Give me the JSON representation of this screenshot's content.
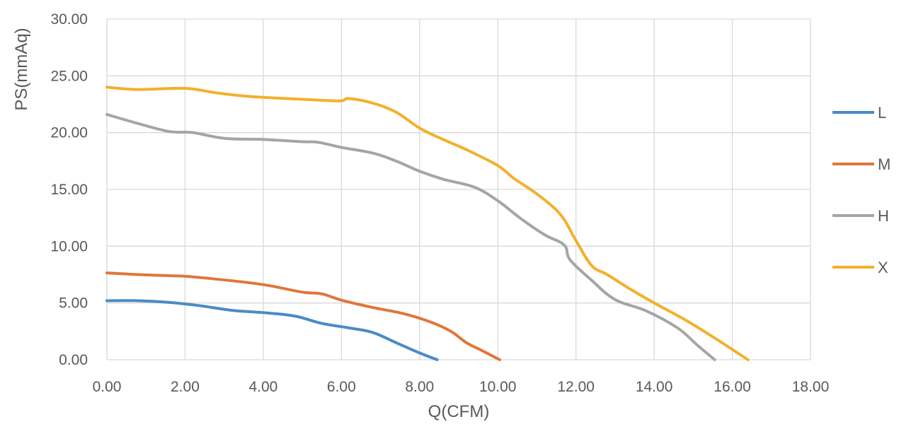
{
  "chart_data": {
    "type": "line",
    "xlabel": "Q(CFM)",
    "ylabel": "PS(mmAq)",
    "xlim": [
      0,
      18
    ],
    "ylim": [
      0,
      30
    ],
    "xticks": [
      "0.00",
      "2.00",
      "4.00",
      "6.00",
      "8.00",
      "10.00",
      "12.00",
      "14.00",
      "16.00",
      "18.00"
    ],
    "yticks": [
      "0.00",
      "5.00",
      "10.00",
      "15.00",
      "20.00",
      "25.00",
      "30.00"
    ],
    "grid": true,
    "legend_position": "right",
    "series": [
      {
        "name": "L",
        "color": "#4a8bc6",
        "x": [
          0,
          0.8,
          1.6,
          2.4,
          3.2,
          4.0,
          4.8,
          5.5,
          6.2,
          6.8,
          7.4,
          8.0,
          8.45
        ],
        "y": [
          5.2,
          5.2,
          5.05,
          4.75,
          4.35,
          4.15,
          3.85,
          3.2,
          2.8,
          2.4,
          1.5,
          0.6,
          0.0
        ]
      },
      {
        "name": "M",
        "color": "#e0763a",
        "x": [
          0,
          0.8,
          1.6,
          2.0,
          2.8,
          3.6,
          4.2,
          5.0,
          5.5,
          6.0,
          6.8,
          7.6,
          8.3,
          8.8,
          9.2,
          9.6,
          10.05
        ],
        "y": [
          7.65,
          7.5,
          7.4,
          7.35,
          7.1,
          6.8,
          6.5,
          5.95,
          5.8,
          5.25,
          4.6,
          4.05,
          3.3,
          2.5,
          1.5,
          0.8,
          0.0
        ]
      },
      {
        "name": "H",
        "color": "#a5a5a5",
        "x": [
          0,
          0.8,
          1.6,
          2.2,
          3.0,
          4.0,
          5.0,
          5.4,
          6.0,
          6.8,
          7.4,
          8.0,
          8.6,
          9.4,
          10.0,
          10.6,
          11.2,
          11.7,
          11.85,
          12.4,
          13.0,
          13.8,
          14.6,
          15.1,
          15.55
        ],
        "y": [
          21.6,
          20.8,
          20.1,
          20.0,
          19.5,
          19.4,
          19.2,
          19.15,
          18.7,
          18.2,
          17.5,
          16.6,
          15.9,
          15.2,
          14.0,
          12.4,
          11.0,
          10.1,
          8.8,
          7.0,
          5.3,
          4.3,
          2.8,
          1.3,
          0.0
        ]
      },
      {
        "name": "X",
        "color": "#f2b02c",
        "x": [
          0,
          0.8,
          2.0,
          2.8,
          3.6,
          4.6,
          5.5,
          6.0,
          6.2,
          6.8,
          7.4,
          8.0,
          8.6,
          9.2,
          10.0,
          10.4,
          11.0,
          11.6,
          12.0,
          12.4,
          12.8,
          13.4,
          14.0,
          14.8,
          15.6,
          16.4
        ],
        "y": [
          24.0,
          23.8,
          23.9,
          23.5,
          23.2,
          23.0,
          22.85,
          22.8,
          23.0,
          22.6,
          21.8,
          20.4,
          19.4,
          18.5,
          17.1,
          16.0,
          14.6,
          12.8,
          10.5,
          8.3,
          7.5,
          6.2,
          5.0,
          3.5,
          1.8,
          0.0
        ]
      }
    ]
  }
}
